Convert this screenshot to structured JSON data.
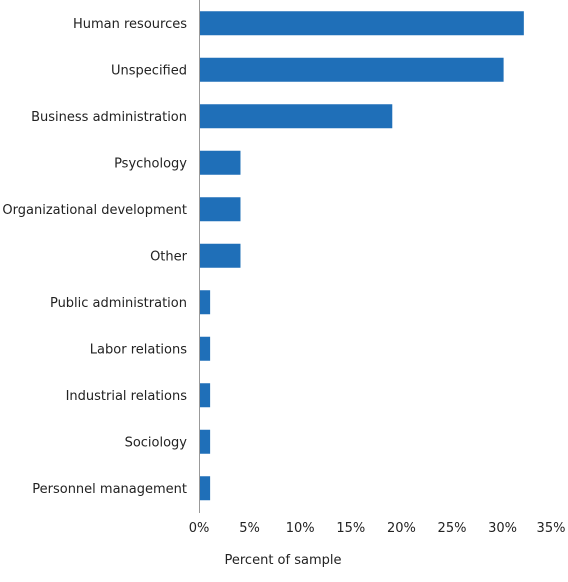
{
  "chart_data": {
    "type": "bar",
    "orientation": "horizontal",
    "categories": [
      "Human resources",
      "Unspecified",
      "Business administration",
      "Psychology",
      "Organizational development",
      "Other",
      "Public administration",
      "Labor relations",
      "Industrial relations",
      "Sociology",
      "Personnel management"
    ],
    "values": [
      32,
      30,
      19,
      4,
      4,
      4,
      1,
      1,
      1,
      1,
      1
    ],
    "xlabel": "Percent of sample",
    "ylabel": "",
    "xlim": [
      0,
      35
    ],
    "xticks": [
      "0%",
      "5%",
      "10%",
      "15%",
      "20%",
      "25%",
      "30%",
      "35%"
    ],
    "bar_color": "#1f6fb8",
    "grid": false
  }
}
